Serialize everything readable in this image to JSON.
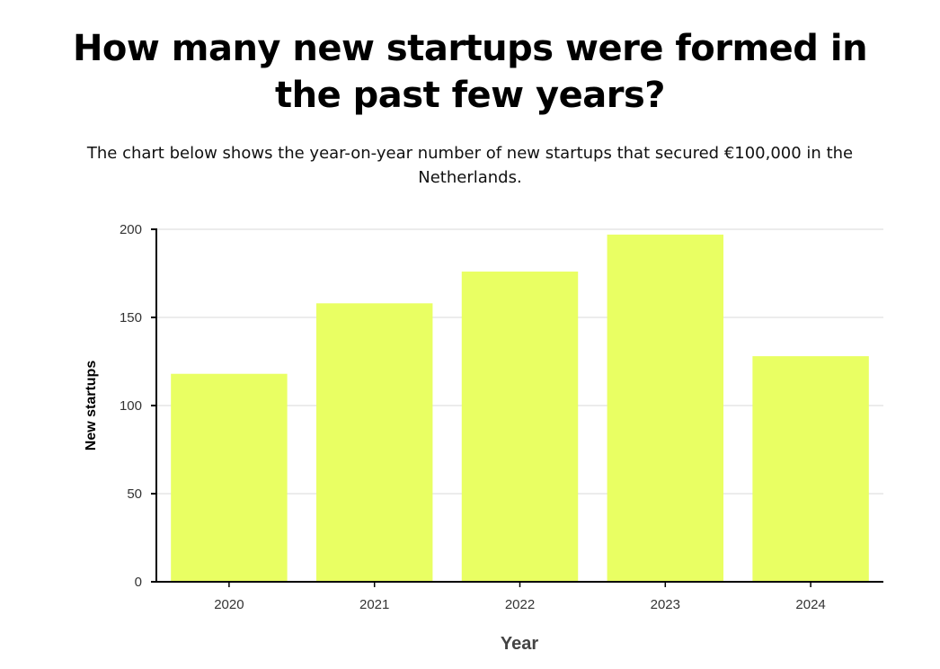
{
  "chart_data": {
    "type": "bar",
    "title": "How many new startups were formed in the past few years?",
    "subtitle": "The chart below shows the year-on-year number of new startups that secured €100,000 in the Netherlands.",
    "categories": [
      "2020",
      "2021",
      "2022",
      "2023",
      "2024"
    ],
    "values": [
      118,
      158,
      176,
      197,
      128
    ],
    "xlabel": "Year",
    "ylabel": "New startups",
    "ylim": [
      0,
      200
    ],
    "yticks": [
      0,
      50,
      100,
      150,
      200
    ],
    "grid": "horizontal",
    "bar_color": "#e9ff63"
  }
}
